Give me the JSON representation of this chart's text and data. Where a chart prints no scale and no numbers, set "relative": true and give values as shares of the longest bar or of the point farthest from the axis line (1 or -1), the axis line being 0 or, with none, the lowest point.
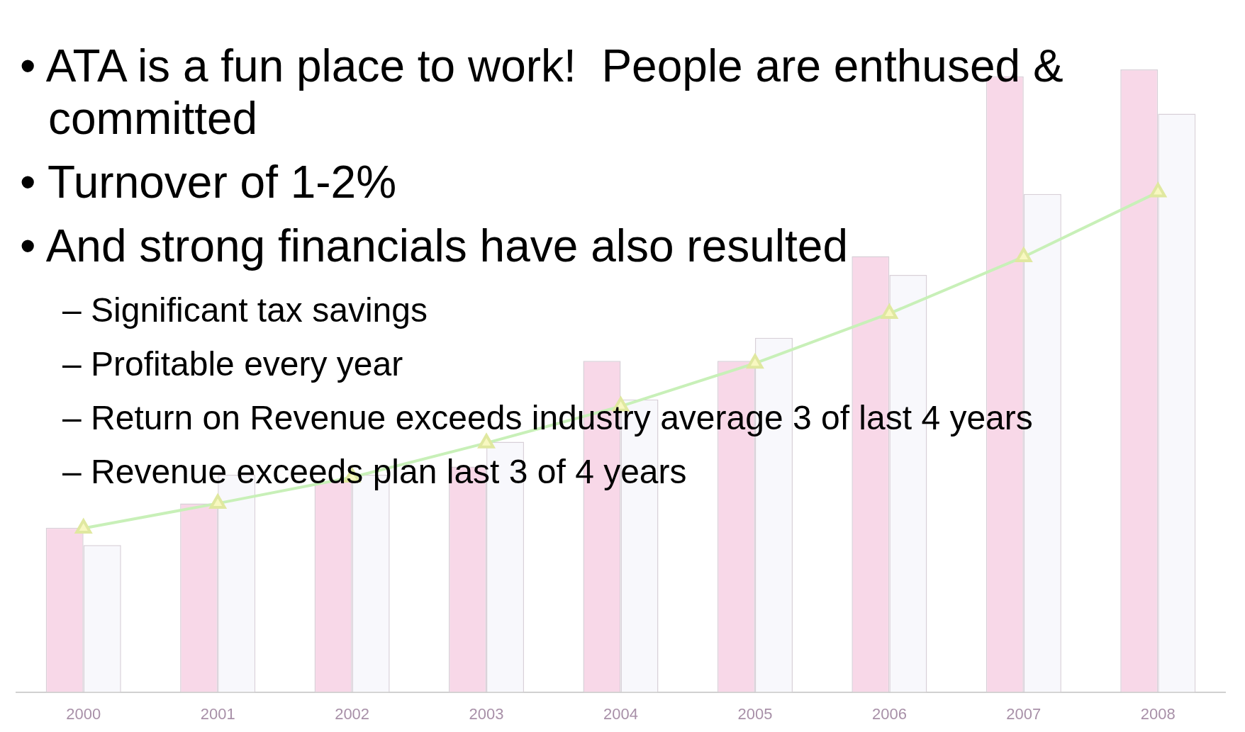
{
  "chart_data": {
    "type": "bar",
    "relative": true,
    "categories": [
      "2000",
      "2001",
      "2002",
      "2003",
      "2004",
      "2005",
      "2006",
      "2007",
      "2008"
    ],
    "series": [
      {
        "color": "#f8d8e8",
        "values": [
          0.264,
          0.303,
          0.339,
          0.362,
          0.532,
          0.532,
          0.7,
          0.989,
          1
        ]
      },
      {
        "color": "#f8f8fc",
        "values": [
          0.236,
          0.349,
          0.349,
          0.402,
          0.47,
          0.569,
          0.67,
          0.8,
          0.929
        ]
      },
      {
        "type": "line",
        "color": "#c8f0b8",
        "values": [
          0.263,
          0.303,
          0.345,
          0.4,
          0.459,
          0.528,
          0.608,
          0.699,
          0.803
        ]
      }
    ],
    "marker": "triangle",
    "grid": false,
    "legend": false,
    "annotations": [
      "• ATA is a fun place to work!  People are enthused & committed",
      "• Turnover of 1-2%",
      "• And strong financials have also resulted",
      "– Significant tax savings",
      "– Profitable every year",
      "– Return on Revenue exceeds industry average 3 of last 4 years",
      "– Revenue exceeds plan last 3 of 4 years"
    ]
  }
}
